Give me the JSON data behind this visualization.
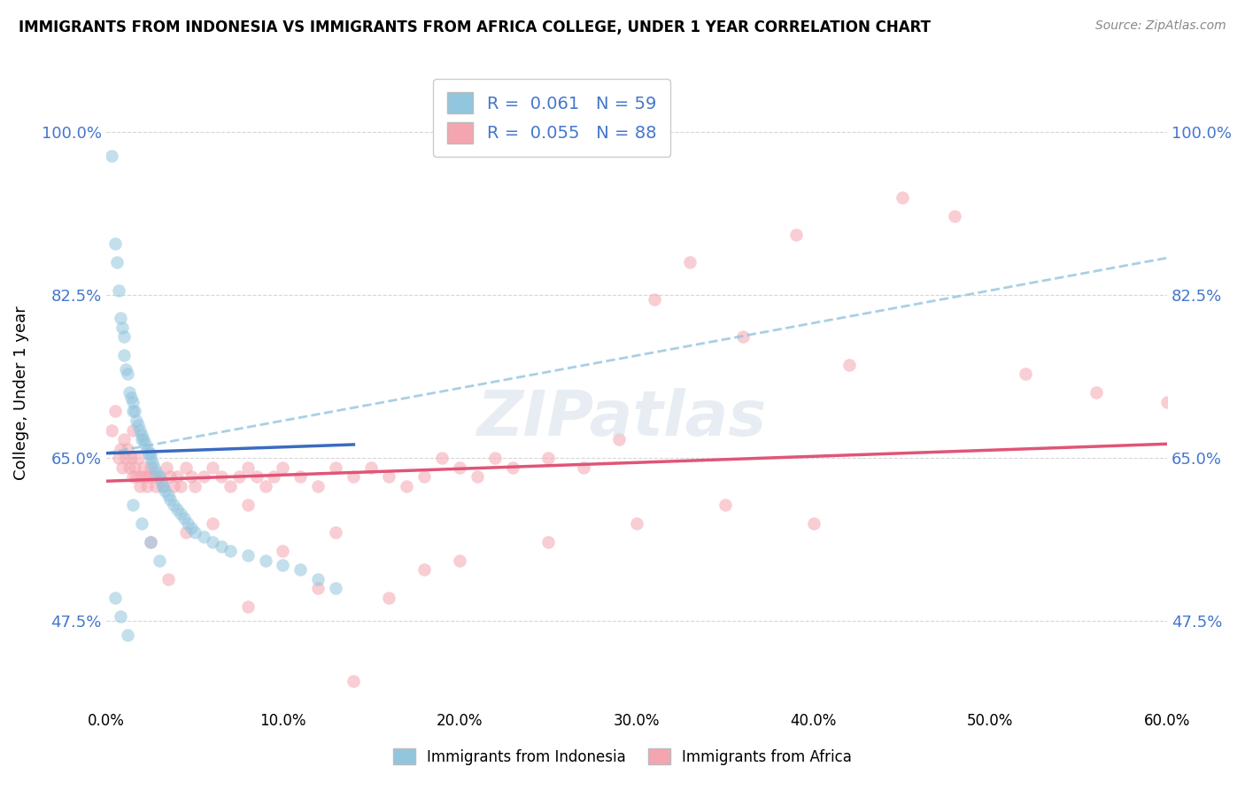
{
  "title": "IMMIGRANTS FROM INDONESIA VS IMMIGRANTS FROM AFRICA COLLEGE, UNDER 1 YEAR CORRELATION CHART",
  "source": "Source: ZipAtlas.com",
  "ylabel": "College, Under 1 year",
  "xlim": [
    0.0,
    0.6
  ],
  "ylim": [
    0.38,
    1.06
  ],
  "yticks": [
    0.475,
    0.65,
    0.825,
    1.0
  ],
  "ytick_labels": [
    "47.5%",
    "65.0%",
    "82.5%",
    "100.0%"
  ],
  "xticks": [
    0.0,
    0.1,
    0.2,
    0.3,
    0.4,
    0.5,
    0.6
  ],
  "xtick_labels": [
    "0.0%",
    "10.0%",
    "20.0%",
    "30.0%",
    "40.0%",
    "50.0%",
    "60.0%"
  ],
  "color_indonesia": "#92c5de",
  "color_africa": "#f4a5b0",
  "color_trend_indonesia": "#3a6bbf",
  "color_trend_africa": "#e05577",
  "color_trend_indonesia_dashed": "#92c5de",
  "indonesia_x": [
    0.003,
    0.005,
    0.006,
    0.007,
    0.008,
    0.009,
    0.01,
    0.01,
    0.011,
    0.012,
    0.013,
    0.014,
    0.015,
    0.015,
    0.016,
    0.017,
    0.018,
    0.019,
    0.02,
    0.02,
    0.021,
    0.022,
    0.023,
    0.024,
    0.025,
    0.025,
    0.026,
    0.027,
    0.028,
    0.03,
    0.031,
    0.032,
    0.033,
    0.035,
    0.036,
    0.038,
    0.04,
    0.042,
    0.044,
    0.046,
    0.048,
    0.05,
    0.055,
    0.06,
    0.065,
    0.07,
    0.08,
    0.09,
    0.1,
    0.11,
    0.12,
    0.13,
    0.015,
    0.02,
    0.025,
    0.03,
    0.005,
    0.008,
    0.012
  ],
  "indonesia_y": [
    0.975,
    0.88,
    0.86,
    0.83,
    0.8,
    0.79,
    0.78,
    0.76,
    0.745,
    0.74,
    0.72,
    0.715,
    0.71,
    0.7,
    0.7,
    0.69,
    0.685,
    0.68,
    0.675,
    0.67,
    0.67,
    0.665,
    0.66,
    0.655,
    0.655,
    0.65,
    0.645,
    0.64,
    0.635,
    0.63,
    0.625,
    0.62,
    0.615,
    0.61,
    0.605,
    0.6,
    0.595,
    0.59,
    0.585,
    0.58,
    0.575,
    0.57,
    0.565,
    0.56,
    0.555,
    0.55,
    0.545,
    0.54,
    0.535,
    0.53,
    0.52,
    0.51,
    0.6,
    0.58,
    0.56,
    0.54,
    0.5,
    0.48,
    0.46
  ],
  "africa_x": [
    0.003,
    0.005,
    0.007,
    0.008,
    0.009,
    0.01,
    0.011,
    0.012,
    0.013,
    0.014,
    0.015,
    0.016,
    0.017,
    0.018,
    0.019,
    0.02,
    0.021,
    0.022,
    0.023,
    0.024,
    0.025,
    0.027,
    0.028,
    0.03,
    0.032,
    0.034,
    0.036,
    0.038,
    0.04,
    0.042,
    0.045,
    0.048,
    0.05,
    0.055,
    0.06,
    0.065,
    0.07,
    0.075,
    0.08,
    0.085,
    0.09,
    0.095,
    0.1,
    0.11,
    0.12,
    0.13,
    0.14,
    0.15,
    0.16,
    0.17,
    0.18,
    0.19,
    0.2,
    0.21,
    0.22,
    0.23,
    0.25,
    0.27,
    0.29,
    0.31,
    0.33,
    0.36,
    0.39,
    0.42,
    0.45,
    0.48,
    0.52,
    0.56,
    0.6,
    0.015,
    0.025,
    0.035,
    0.045,
    0.06,
    0.08,
    0.1,
    0.13,
    0.16,
    0.2,
    0.25,
    0.3,
    0.35,
    0.4,
    0.14,
    0.08,
    0.12,
    0.18
  ],
  "africa_y": [
    0.68,
    0.7,
    0.65,
    0.66,
    0.64,
    0.67,
    0.65,
    0.66,
    0.64,
    0.65,
    0.63,
    0.64,
    0.63,
    0.65,
    0.62,
    0.63,
    0.64,
    0.63,
    0.62,
    0.63,
    0.64,
    0.63,
    0.62,
    0.63,
    0.62,
    0.64,
    0.63,
    0.62,
    0.63,
    0.62,
    0.64,
    0.63,
    0.62,
    0.63,
    0.64,
    0.63,
    0.62,
    0.63,
    0.64,
    0.63,
    0.62,
    0.63,
    0.64,
    0.63,
    0.62,
    0.64,
    0.63,
    0.64,
    0.63,
    0.62,
    0.63,
    0.65,
    0.64,
    0.63,
    0.65,
    0.64,
    0.65,
    0.64,
    0.67,
    0.82,
    0.86,
    0.78,
    0.89,
    0.75,
    0.93,
    0.91,
    0.74,
    0.72,
    0.71,
    0.68,
    0.56,
    0.52,
    0.57,
    0.58,
    0.6,
    0.55,
    0.57,
    0.5,
    0.54,
    0.56,
    0.58,
    0.6,
    0.58,
    0.41,
    0.49,
    0.51,
    0.53
  ],
  "trend_indo_x0": 0.0,
  "trend_indo_x1": 0.6,
  "trend_indo_y0": 0.655,
  "trend_indo_y1": 0.695,
  "trend_indo_solid_x1": 0.14,
  "trend_afr_y0": 0.625,
  "trend_afr_y1": 0.665,
  "trend_dashed_y0": 0.655,
  "trend_dashed_y1": 0.865
}
